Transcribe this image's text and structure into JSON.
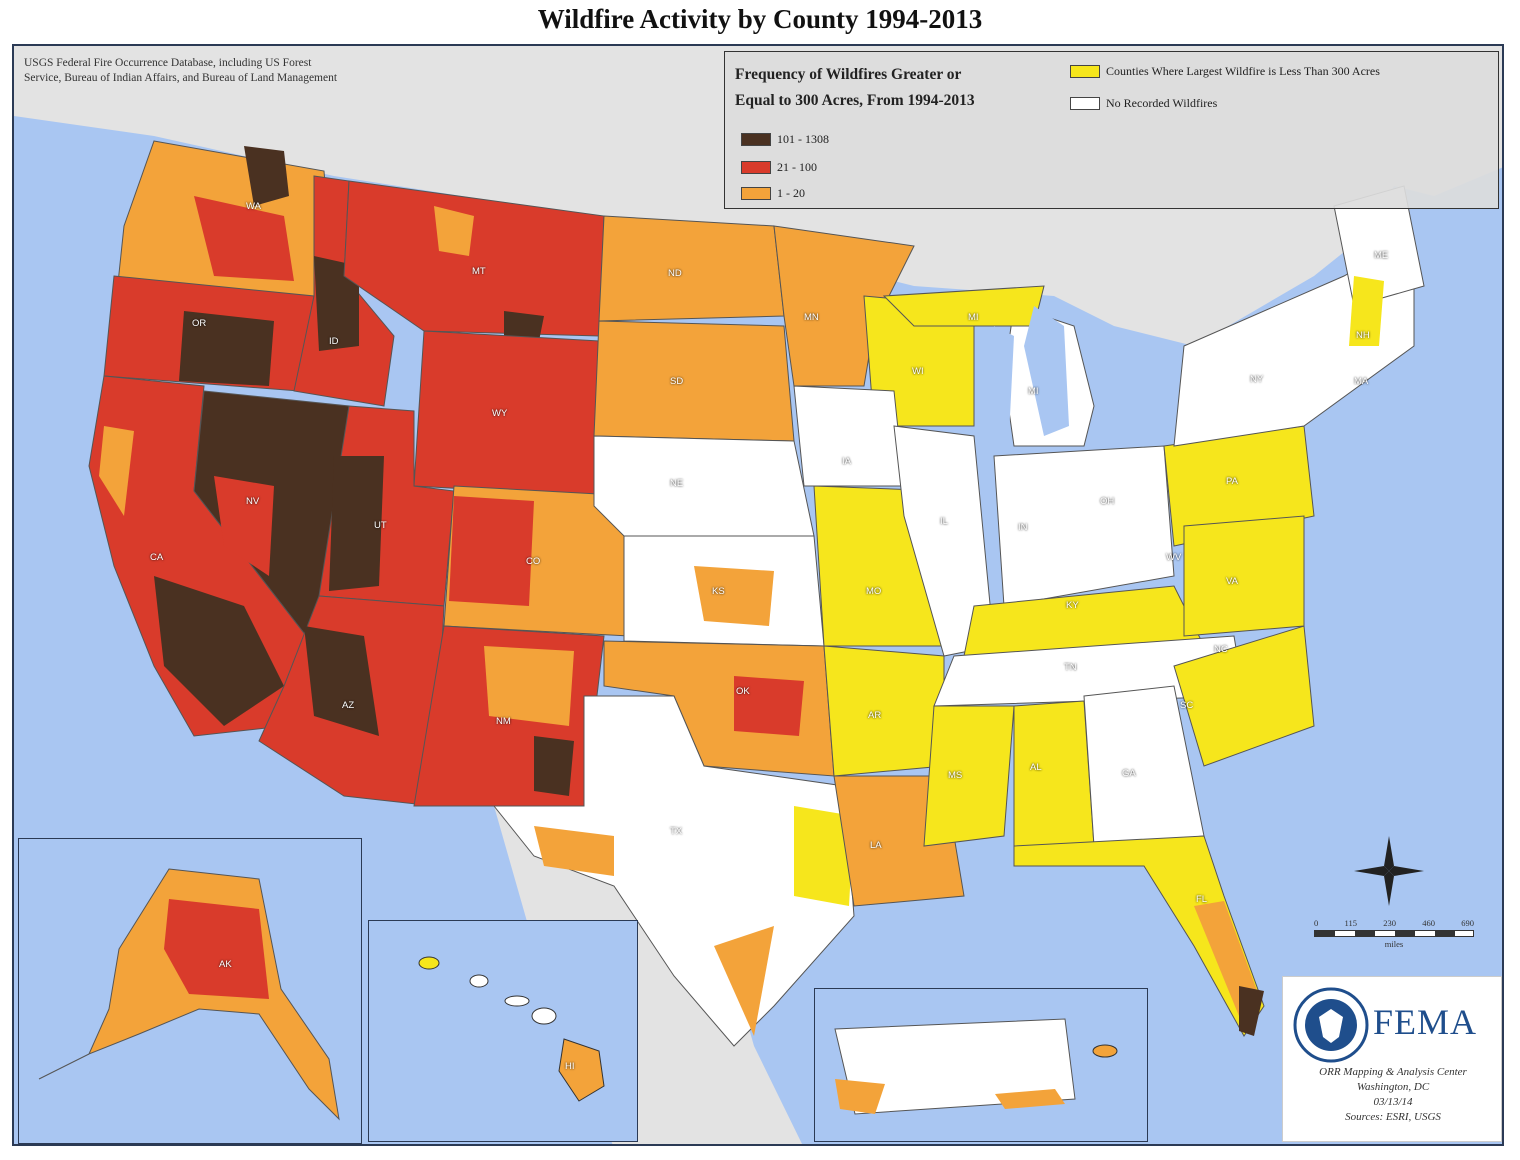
{
  "title": "Wildfire Activity by County 1994-2013",
  "source_note": {
    "line1": "USGS Federal Fire Occurrence Database, including US Forest",
    "line2": "Service, Bureau of Indian Affairs, and Bureau of Land Management"
  },
  "legend": {
    "title_line1": "Frequency of Wildfires Greater or",
    "title_line2": "Equal to 300 Acres, From 1994-2013",
    "classes": [
      {
        "label": "101 - 1308",
        "color": "#4a3121"
      },
      {
        "label": "21 - 100",
        "color": "#d93b2b"
      },
      {
        "label": "1 - 20",
        "color": "#f3a33a"
      }
    ],
    "other": [
      {
        "label": "Counties Where Largest Wildfire is Less Than 300 Acres",
        "color": "#f6e61c"
      },
      {
        "label": "No Recorded Wildfires",
        "color": "#ffffff"
      }
    ]
  },
  "state_labels": {
    "wa": "WA",
    "or": "OR",
    "id": "ID",
    "mt": "MT",
    "wy": "WY",
    "nv": "NV",
    "ut": "UT",
    "ca": "CA",
    "co": "CO",
    "az": "AZ",
    "nm": "NM",
    "nd": "ND",
    "sd": "SD",
    "ne": "NE",
    "ks": "KS",
    "ok": "OK",
    "tx": "TX",
    "mn": "MN",
    "ia": "IA",
    "mo": "MO",
    "ar": "AR",
    "la": "LA",
    "wi": "WI",
    "il": "IL",
    "mi": "MI",
    "in": "IN",
    "oh": "OH",
    "ky": "KY",
    "tn": "TN",
    "ms": "MS",
    "al": "AL",
    "ga": "GA",
    "fl": "FL",
    "sc": "SC",
    "nc": "NC",
    "va": "VA",
    "wv": "WV",
    "pa": "PA",
    "ny": "NY",
    "me": "ME",
    "nh": "NH",
    "ma": "MA",
    "ak": "AK",
    "hi": "HI"
  },
  "scale": {
    "ticks": [
      "0",
      "115",
      "230",
      "460",
      "690"
    ],
    "unit": "miles"
  },
  "agency": {
    "name": "FEMA",
    "credit_line1": "ORR Mapping & Analysis Center",
    "credit_line2": "Washington, DC",
    "credit_line3": "03/13/14",
    "credit_line4": "Sources: ESRI, USGS"
  }
}
